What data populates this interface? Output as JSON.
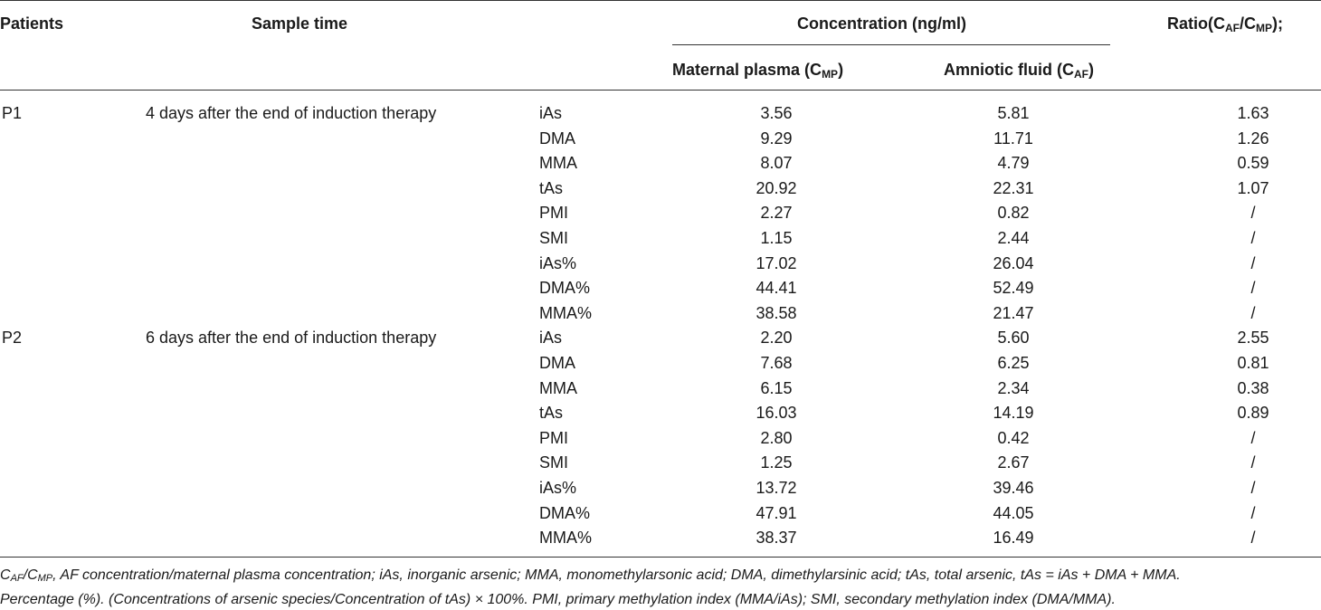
{
  "headers": {
    "patients": "Patients",
    "sample_time": "Sample time",
    "concentration": "Concentration (ng/ml)",
    "ratio": "Ratio(C",
    "ratio_sub1": "AF",
    "ratio_mid": "/C",
    "ratio_sub2": "MP",
    "ratio_end": ");",
    "maternal": "Maternal plasma (C",
    "maternal_sub": "MP",
    "maternal_end": ")",
    "amniotic": "Amniotic fluid (C",
    "amniotic_sub": "AF",
    "amniotic_end": ")"
  },
  "groups": [
    {
      "patient": "P1",
      "time": "4 days after the end of induction therapy",
      "rows": [
        {
          "label": "iAs",
          "mp": "3.56",
          "af": "5.81",
          "ratio": "1.63"
        },
        {
          "label": "DMA",
          "mp": "9.29",
          "af": "11.71",
          "ratio": "1.26"
        },
        {
          "label": "MMA",
          "mp": "8.07",
          "af": "4.79",
          "ratio": "0.59"
        },
        {
          "label": "tAs",
          "mp": "20.92",
          "af": "22.31",
          "ratio": "1.07"
        },
        {
          "label": "PMI",
          "mp": "2.27",
          "af": "0.82",
          "ratio": "/"
        },
        {
          "label": "SMI",
          "mp": "1.15",
          "af": "2.44",
          "ratio": "/"
        },
        {
          "label": "iAs%",
          "mp": "17.02",
          "af": "26.04",
          "ratio": "/"
        },
        {
          "label": "DMA%",
          "mp": "44.41",
          "af": "52.49",
          "ratio": "/"
        },
        {
          "label": "MMA%",
          "mp": "38.58",
          "af": "21.47",
          "ratio": "/"
        }
      ]
    },
    {
      "patient": "P2",
      "time": "6 days after the end of induction therapy",
      "rows": [
        {
          "label": "iAs",
          "mp": "2.20",
          "af": "5.60",
          "ratio": "2.55"
        },
        {
          "label": "DMA",
          "mp": "7.68",
          "af": "6.25",
          "ratio": "0.81"
        },
        {
          "label": "MMA",
          "mp": "6.15",
          "af": "2.34",
          "ratio": "0.38"
        },
        {
          "label": "tAs",
          "mp": "16.03",
          "af": "14.19",
          "ratio": "0.89"
        },
        {
          "label": "PMI",
          "mp": "2.80",
          "af": "0.42",
          "ratio": "/"
        },
        {
          "label": "SMI",
          "mp": "1.25",
          "af": "2.67",
          "ratio": "/"
        },
        {
          "label": "iAs%",
          "mp": "13.72",
          "af": "39.46",
          "ratio": "/"
        },
        {
          "label": "DMA%",
          "mp": "47.91",
          "af": "44.05",
          "ratio": "/"
        },
        {
          "label": "MMA%",
          "mp": "38.37",
          "af": "16.49",
          "ratio": "/"
        }
      ]
    }
  ],
  "footnote": {
    "c1": "C",
    "c1_sub": "AF",
    "c2": "/C",
    "c2_sub": "MP",
    "line1_rest": ", AF concentration/maternal plasma concentration; iAs, inorganic arsenic; MMA, monomethylarsonic acid; DMA, dimethylarsinic acid; tAs, total arsenic, tAs = iAs + DMA + MMA.",
    "line2": "Percentage (%). (Concentrations of arsenic species/Concentration of tAs) × 100%. PMI, primary methylation index (MMA/iAs); SMI, secondary methylation index (DMA/MMA)."
  }
}
